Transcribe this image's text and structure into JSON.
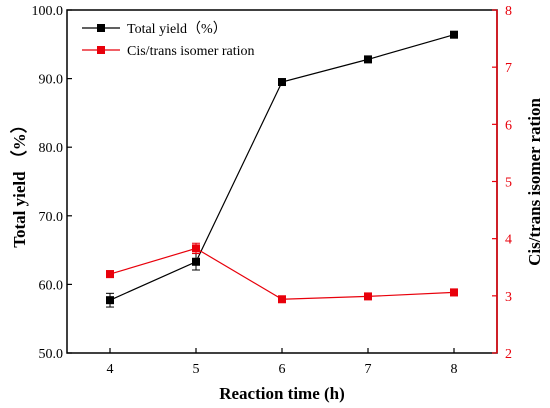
{
  "chart_data": {
    "type": "line",
    "title": "",
    "x": [
      4,
      5,
      6,
      7,
      8
    ],
    "xlabel": "Reaction time (h)",
    "xlim": [
      3.5,
      8.5
    ],
    "xticks": [
      4,
      5,
      6,
      7,
      8
    ],
    "y_left": {
      "label": "Total yield （%）",
      "lim": [
        50,
        100
      ],
      "ticks": [
        50,
        60,
        70,
        80,
        90,
        100
      ],
      "tick_labels": [
        "50.0",
        "60.0",
        "70.0",
        "80.0",
        "90.0",
        "100.0"
      ]
    },
    "y_right": {
      "label": "Cis/trans isomer ration",
      "lim": [
        2,
        8
      ],
      "ticks": [
        2,
        3,
        4,
        5,
        6,
        7,
        8
      ],
      "tick_labels": [
        "2",
        "3",
        "4",
        "5",
        "6",
        "7",
        "8"
      ]
    },
    "series": [
      {
        "name": "Total yield（%）",
        "axis": "left",
        "color": "#000000",
        "marker": "square",
        "values": [
          57.7,
          63.3,
          89.5,
          92.8,
          96.4
        ],
        "errors": [
          1.0,
          1.2,
          0,
          0,
          0
        ]
      },
      {
        "name": "Cis/trans isomer ration",
        "axis": "right",
        "color": "#e8000b",
        "marker": "square",
        "values": [
          3.38,
          3.83,
          2.94,
          2.99,
          3.06
        ],
        "errors": [
          0.06,
          0.09,
          0.03,
          0.03,
          0.06
        ]
      }
    ],
    "legend_position": "top-left",
    "grid": false
  }
}
